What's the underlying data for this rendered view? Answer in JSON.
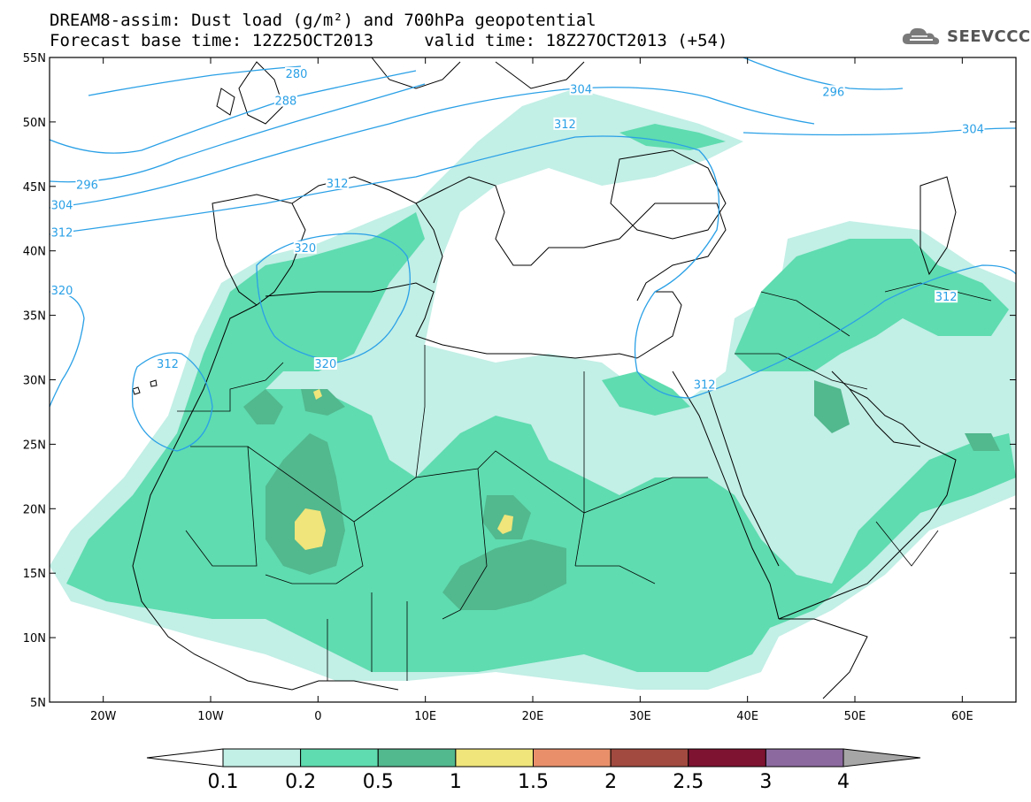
{
  "header": {
    "line1": "DREAM8-assim: Dust load (g/m²) and 700hPa geopotential",
    "line2": "Forecast base time: 12Z25OCT2013     valid time: 18Z27OCT2013 (+54)"
  },
  "logo": {
    "text": "SEEVCCC",
    "icon": "cloud-icon"
  },
  "axes": {
    "lon_ticks": [
      {
        "label": "20W",
        "lon": -20
      },
      {
        "label": "10W",
        "lon": -10
      },
      {
        "label": "0",
        "lon": 0
      },
      {
        "label": "10E",
        "lon": 10
      },
      {
        "label": "20E",
        "lon": 20
      },
      {
        "label": "30E",
        "lon": 30
      },
      {
        "label": "40E",
        "lon": 40
      },
      {
        "label": "50E",
        "lon": 50
      },
      {
        "label": "60E",
        "lon": 60
      }
    ],
    "lat_ticks": [
      {
        "label": "55N",
        "lat": 55
      },
      {
        "label": "50N",
        "lat": 50
      },
      {
        "label": "45N",
        "lat": 45
      },
      {
        "label": "40N",
        "lat": 40
      },
      {
        "label": "35N",
        "lat": 35
      },
      {
        "label": "30N",
        "lat": 30
      },
      {
        "label": "25N",
        "lat": 25
      },
      {
        "label": "20N",
        "lat": 20
      },
      {
        "label": "15N",
        "lat": 15
      },
      {
        "label": "10N",
        "lat": 10
      },
      {
        "label": "5N",
        "lat": 5
      }
    ],
    "lon_range": [
      -25,
      65
    ],
    "lat_range": [
      5,
      55
    ]
  },
  "colorbar": {
    "levels": [
      "0.1",
      "0.2",
      "0.5",
      "1",
      "1.5",
      "2",
      "2.5",
      "3",
      "4"
    ],
    "colors": [
      "#c2efe6",
      "#5fdcb0",
      "#52b88e",
      "#efe57a",
      "#e9906a",
      "#a24a3f",
      "#7d1330",
      "#8c6a9f"
    ],
    "under_color": "#ffffff",
    "over_color": "#a6a6a6"
  },
  "contour_labels": [
    {
      "text": "280",
      "lon": -2,
      "lat": 53.7
    },
    {
      "text": "288",
      "lon": -3,
      "lat": 51.6
    },
    {
      "text": "296",
      "lon": -21.5,
      "lat": 45.1
    },
    {
      "text": "304",
      "lon": -24.5,
      "lat": 43.5
    },
    {
      "text": "312",
      "lon": -25,
      "lat": 41.4
    },
    {
      "text": "312",
      "lon": 1.8,
      "lat": 45.2
    },
    {
      "text": "304",
      "lon": 24.5,
      "lat": 52.5
    },
    {
      "text": "312",
      "lon": 23,
      "lat": 49.8
    },
    {
      "text": "296",
      "lon": 48,
      "lat": 52.3
    },
    {
      "text": "304",
      "lon": 61,
      "lat": 49.4
    },
    {
      "text": "320",
      "lon": -1.2,
      "lat": 40.2
    },
    {
      "text": "320",
      "lon": -25,
      "lat": 36.9
    },
    {
      "text": "312",
      "lon": -14,
      "lat": 31.2
    },
    {
      "text": "320",
      "lon": 0.7,
      "lat": 31.2
    },
    {
      "text": "312",
      "lon": 36,
      "lat": 29.6
    },
    {
      "text": "312",
      "lon": 58.5,
      "lat": 36.4
    }
  ]
}
